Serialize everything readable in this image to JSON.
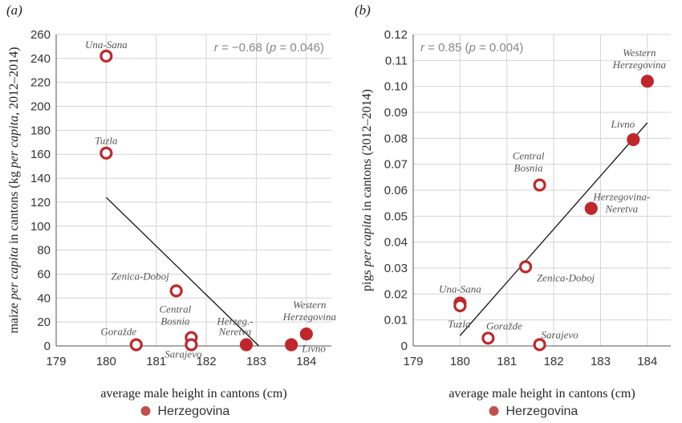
{
  "colors": {
    "marker": "#c0272d",
    "marker_fill_herzegovina": "#c0272d",
    "legend_marker": "#c0504d",
    "grid": "#d4d4d4",
    "trend": "#111111"
  },
  "chart_data": [
    {
      "type": "scatter",
      "panel_label": "(a)",
      "xlabel": "average male height in cantons (cm)",
      "ylabel_parts": [
        "maize ",
        "per capita",
        " in cantons (kg ",
        "per capita",
        ", 2012–2014)"
      ],
      "stat_parts": [
        "r",
        " = −0.68 (",
        "p",
        " = 0.046)"
      ],
      "xlim": [
        179,
        184.5
      ],
      "ylim": [
        0,
        260
      ],
      "xticks": [
        "179",
        "180",
        "181",
        "182",
        "183",
        "184"
      ],
      "yticks": [
        "0",
        "20",
        "40",
        "60",
        "80",
        "100",
        "120",
        "140",
        "160",
        "180",
        "200",
        "220",
        "240",
        "260"
      ],
      "grid": true,
      "trend_line": {
        "x": [
          180,
          183.05
        ],
        "y": [
          124,
          0
        ]
      },
      "points": [
        {
          "label": [
            "Una-Sana"
          ],
          "x": 180.0,
          "y": 242,
          "herzegovina": false
        },
        {
          "label": [
            "Tuzla"
          ],
          "x": 180.0,
          "y": 161,
          "herzegovina": false
        },
        {
          "label": [
            "Zenica-Doboj"
          ],
          "x": 181.4,
          "y": 46,
          "herzegovina": false
        },
        {
          "label": [
            "Central",
            "Bosnia"
          ],
          "x": 181.7,
          "y": 7,
          "herzegovina": false
        },
        {
          "label": [
            "Sarajevo"
          ],
          "x": 181.7,
          "y": 1,
          "herzegovina": false
        },
        {
          "label": [
            "Goražde"
          ],
          "x": 180.6,
          "y": 1,
          "herzegovina": false
        },
        {
          "label": [
            "Herzeg.-",
            "Neretva"
          ],
          "x": 182.8,
          "y": 1,
          "herzegovina": true
        },
        {
          "label": [
            "Western",
            "Herzegovina"
          ],
          "x": 184.0,
          "y": 10,
          "herzegovina": true
        },
        {
          "label": [
            "Livno"
          ],
          "x": 183.7,
          "y": 1,
          "herzegovina": true
        }
      ],
      "legend": "Herzegovina"
    },
    {
      "type": "scatter",
      "panel_label": "(b)",
      "xlabel": "average male height in cantons (cm)",
      "ylabel_parts": [
        "pigs ",
        "per capita",
        " in cantons (2012–2014)"
      ],
      "stat_parts": [
        "r",
        " = 0.85 (",
        "p",
        " = 0.004)"
      ],
      "xlim": [
        179,
        184.5
      ],
      "ylim": [
        0,
        0.12
      ],
      "xticks": [
        "179",
        "180",
        "181",
        "182",
        "183",
        "184"
      ],
      "yticks": [
        "0",
        "0.01",
        "0.02",
        "0.03",
        "0.04",
        "0.05",
        "0.06",
        "0.07",
        "0.08",
        "0.09",
        "0.10",
        "0.11",
        "0.12"
      ],
      "grid": true,
      "trend_line": {
        "x": [
          180,
          184.0
        ],
        "y": [
          0.004,
          0.086
        ]
      },
      "points": [
        {
          "label": [
            "Western",
            "Herzegovina"
          ],
          "x": 184.0,
          "y": 0.102,
          "herzegovina": true
        },
        {
          "label": [
            "Livno"
          ],
          "x": 183.7,
          "y": 0.0795,
          "herzegovina": true
        },
        {
          "label": [
            "Central",
            "Bosnia"
          ],
          "x": 181.7,
          "y": 0.062,
          "herzegovina": false
        },
        {
          "label": [
            "Herzegovina-",
            "Neretva"
          ],
          "x": 182.8,
          "y": 0.053,
          "herzegovina": true
        },
        {
          "label": [
            "Zenica-Doboj"
          ],
          "x": 181.4,
          "y": 0.0305,
          "herzegovina": false
        },
        {
          "label": [
            "Una-Sana"
          ],
          "x": 180.0,
          "y": 0.0165,
          "herzegovina": false
        },
        {
          "label": [
            "Tuzla"
          ],
          "x": 180.0,
          "y": 0.0155,
          "herzegovina": false
        },
        {
          "label": [
            "Goražde"
          ],
          "x": 180.6,
          "y": 0.003,
          "herzegovina": false
        },
        {
          "label": [
            "Sarajevo"
          ],
          "x": 181.7,
          "y": 0.0005,
          "herzegovina": false
        }
      ],
      "legend": "Herzegovina"
    }
  ]
}
